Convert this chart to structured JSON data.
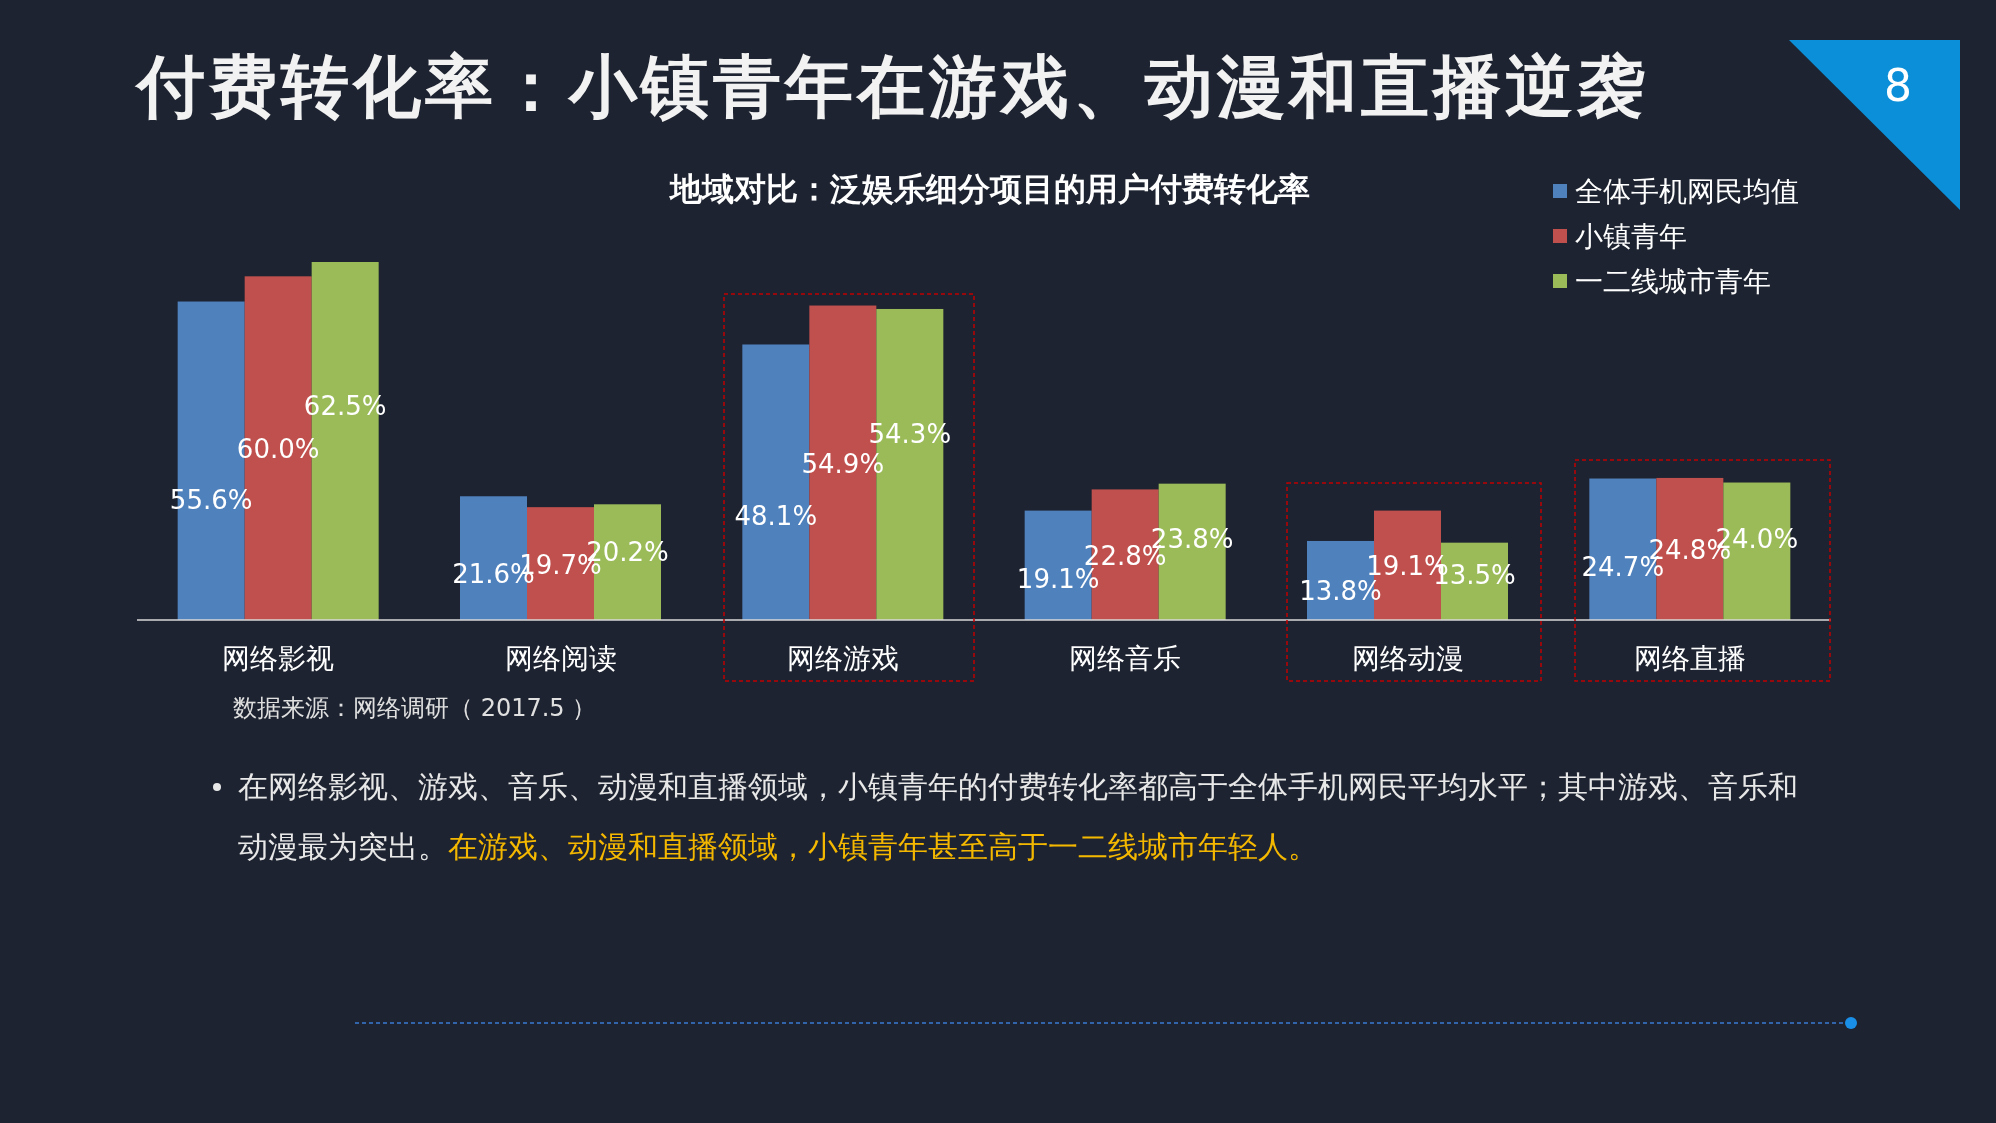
{
  "chart_data": {
    "type": "bar",
    "title": "付费转化率：小镇青年在游戏、动漫和直播逆袭",
    "subtitle": "地域对比：泛娱乐细分项目的用户付费转化率",
    "categories": [
      "网络影视",
      "网络阅读",
      "网络游戏",
      "网络音乐",
      "网络动漫",
      "网络直播"
    ],
    "series": [
      {
        "name": "全体手机网民均值",
        "color": "#4f81bd",
        "values": [
          55.6,
          21.6,
          48.1,
          19.1,
          13.8,
          24.7
        ],
        "value_labels": [
          "55.6%",
          "21.6%",
          "48.1%",
          "19.1%",
          "13.8%",
          "24.7%"
        ]
      },
      {
        "name": "小镇青年",
        "color": "#c0504d",
        "values": [
          60.0,
          19.7,
          54.9,
          22.8,
          19.1,
          24.8
        ],
        "value_labels": [
          "60.0%",
          "19.7%",
          "54.9%",
          "22.8%",
          "19.1%",
          "24.8%"
        ]
      },
      {
        "name": "一二线城市青年",
        "color": "#9bbb59",
        "values": [
          62.5,
          20.2,
          54.3,
          23.8,
          13.5,
          24.0
        ],
        "value_labels": [
          "62.5%",
          "20.2%",
          "54.3%",
          "23.8%",
          "13.5%",
          "24.0%"
        ]
      }
    ],
    "legend": "top right",
    "annotations": [
      "8",
      "数据来源：网络调研（ 2017.5 ）",
      "在网络影视、游戏、音乐、动漫和直播领域，小镇青年的付费转化率都高于全体手机网民平均水平；其中游戏、音乐和动漫最为突出。",
      "在游戏、动漫和直播领域，小镇青年甚至高于一二线城市年轻人。"
    ]
  }
}
